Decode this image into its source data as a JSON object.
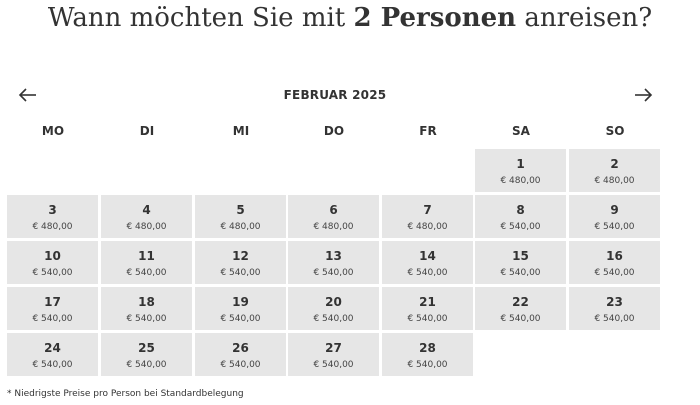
{
  "heading": {
    "prefix": "Wann möchten Sie mit ",
    "bold": "2 Personen",
    "suffix": " anreisen?"
  },
  "calendar": {
    "month_title": "FEBRUAR 2025",
    "prev_icon": "arrow-left-icon",
    "next_icon": "arrow-right-icon",
    "weekdays": [
      "MO",
      "DI",
      "MI",
      "DO",
      "FR",
      "SA",
      "SO"
    ],
    "days": [
      {
        "day": "1",
        "price": "€ 480,00"
      },
      {
        "day": "2",
        "price": "€ 480,00"
      },
      {
        "day": "3",
        "price": "€ 480,00"
      },
      {
        "day": "4",
        "price": "€ 480,00"
      },
      {
        "day": "5",
        "price": "€ 480,00"
      },
      {
        "day": "6",
        "price": "€ 480,00"
      },
      {
        "day": "7",
        "price": "€ 480,00"
      },
      {
        "day": "8",
        "price": "€ 540,00"
      },
      {
        "day": "9",
        "price": "€ 540,00"
      },
      {
        "day": "10",
        "price": "€ 540,00"
      },
      {
        "day": "11",
        "price": "€ 540,00"
      },
      {
        "day": "12",
        "price": "€ 540,00"
      },
      {
        "day": "13",
        "price": "€ 540,00"
      },
      {
        "day": "14",
        "price": "€ 540,00"
      },
      {
        "day": "15",
        "price": "€ 540,00"
      },
      {
        "day": "16",
        "price": "€ 540,00"
      },
      {
        "day": "17",
        "price": "€ 540,00"
      },
      {
        "day": "18",
        "price": "€ 540,00"
      },
      {
        "day": "19",
        "price": "€ 540,00"
      },
      {
        "day": "20",
        "price": "€ 540,00"
      },
      {
        "day": "21",
        "price": "€ 540,00"
      },
      {
        "day": "22",
        "price": "€ 540,00"
      },
      {
        "day": "23",
        "price": "€ 540,00"
      },
      {
        "day": "24",
        "price": "€ 540,00"
      },
      {
        "day": "25",
        "price": "€ 540,00"
      },
      {
        "day": "26",
        "price": "€ 540,00"
      },
      {
        "day": "27",
        "price": "€ 540,00"
      },
      {
        "day": "28",
        "price": "€ 540,00"
      }
    ]
  },
  "footnote": "* Niedrigste Preise pro Person bei Standardbelegung",
  "colors": {
    "cell_background": "#e6e6e6",
    "text": "#333333"
  }
}
